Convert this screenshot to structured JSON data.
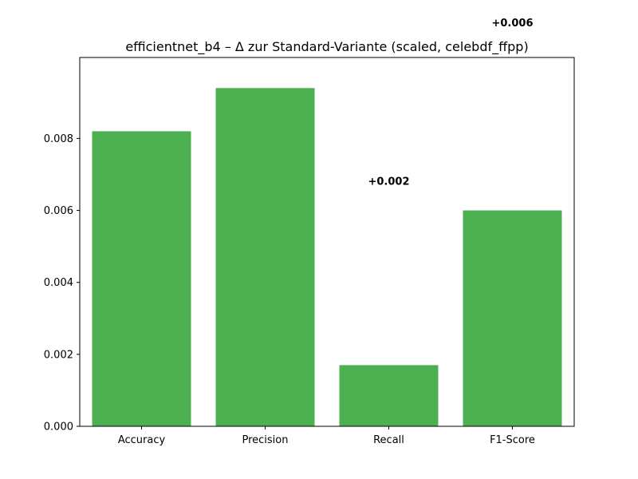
{
  "chart_data": {
    "type": "bar",
    "title": "efficientnet_b4 – Δ zur Standard-Variante (scaled, celebdf_ffpp)",
    "xlabel": "",
    "ylabel": "",
    "categories": [
      "Accuracy",
      "Precision",
      "Recall",
      "F1-Score"
    ],
    "values": [
      0.0082,
      0.0094,
      0.0017,
      0.006
    ],
    "data_labels": [
      "",
      "",
      "+0.002",
      "+0.006"
    ],
    "data_label_values": [
      null,
      null,
      0.0068,
      0.0112
    ],
    "ylim": [
      0,
      0.01025
    ],
    "yticks": [
      0.0,
      0.002,
      0.004,
      0.006,
      0.008
    ],
    "ytick_labels": [
      "0.000",
      "0.002",
      "0.004",
      "0.006",
      "0.008"
    ],
    "grid": false,
    "bar_color": "#4caf50"
  }
}
